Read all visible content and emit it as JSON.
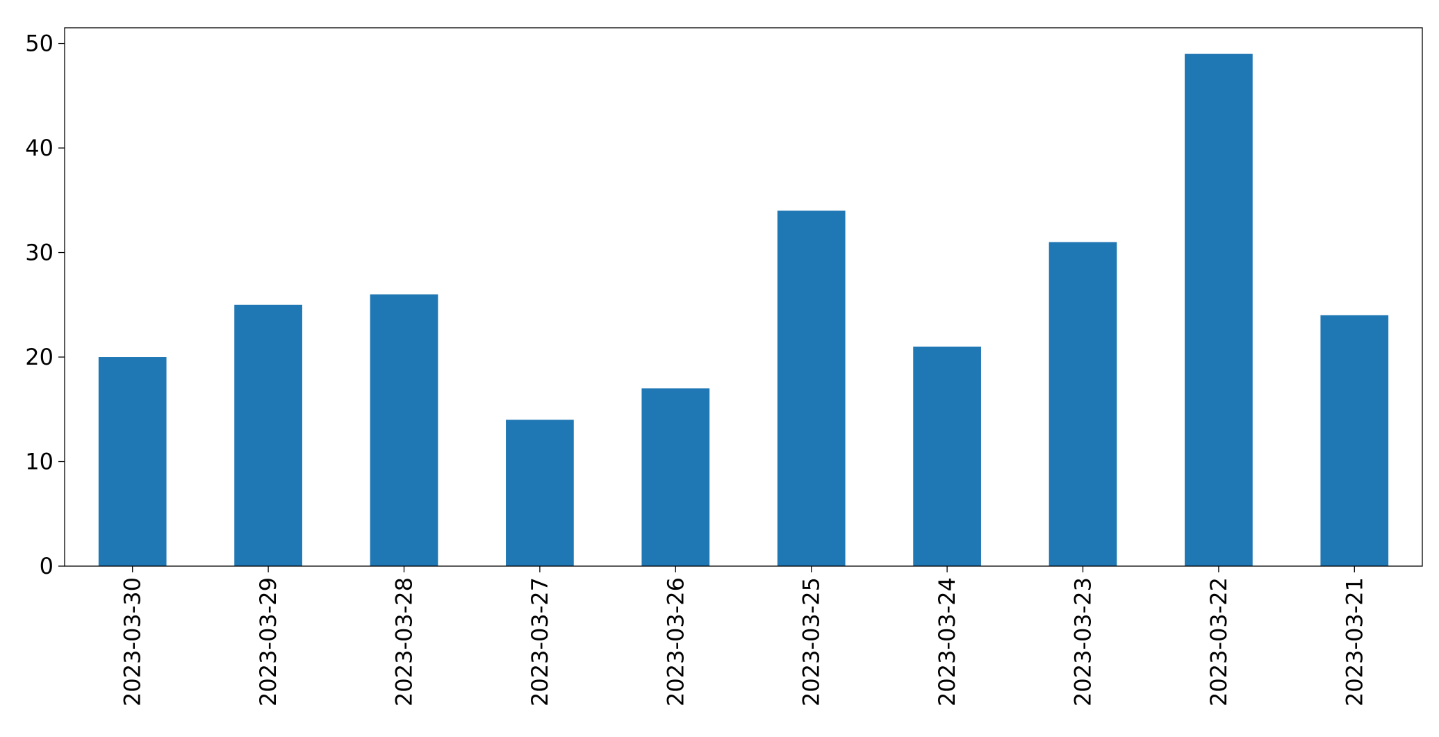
{
  "chart_data": {
    "type": "bar",
    "categories": [
      "2023-03-30",
      "2023-03-29",
      "2023-03-28",
      "2023-03-27",
      "2023-03-26",
      "2023-03-25",
      "2023-03-24",
      "2023-03-23",
      "2023-03-22",
      "2023-03-21"
    ],
    "values": [
      20,
      25,
      26,
      14,
      17,
      34,
      21,
      31,
      49,
      24
    ],
    "color": "#1f77b4",
    "ylim": [
      0,
      51.5
    ],
    "yticks": [
      0,
      10,
      20,
      30,
      40,
      50
    ],
    "grid": false
  }
}
